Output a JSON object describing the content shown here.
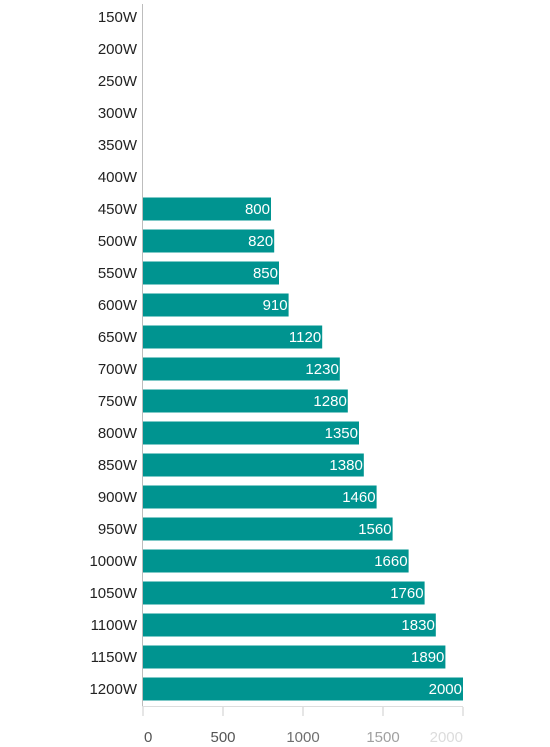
{
  "chart_data": {
    "type": "bar",
    "orientation": "horizontal",
    "title": "",
    "xlabel": "",
    "ylabel": "",
    "categories": [
      "150W",
      "200W",
      "250W",
      "300W",
      "350W",
      "400W",
      "450W",
      "500W",
      "550W",
      "600W",
      "650W",
      "700W",
      "750W",
      "800W",
      "850W",
      "900W",
      "950W",
      "1000W",
      "1050W",
      "1100W",
      "1150W",
      "1200W"
    ],
    "values": [
      null,
      null,
      null,
      null,
      null,
      null,
      800,
      820,
      850,
      910,
      1120,
      1230,
      1280,
      1350,
      1380,
      1460,
      1560,
      1660,
      1760,
      1830,
      1890,
      2000
    ],
    "xlim": [
      0,
      2000
    ],
    "x_ticks": [
      0,
      500,
      1000,
      1500,
      2000
    ],
    "grid": false,
    "legend": "none",
    "bar_color": "#009490",
    "value_label_color": "#ffffff",
    "tick_colors": [
      "#555555",
      "#555555",
      "#6f6f6f",
      "#a0a0a0",
      "#dcdcdc"
    ]
  }
}
